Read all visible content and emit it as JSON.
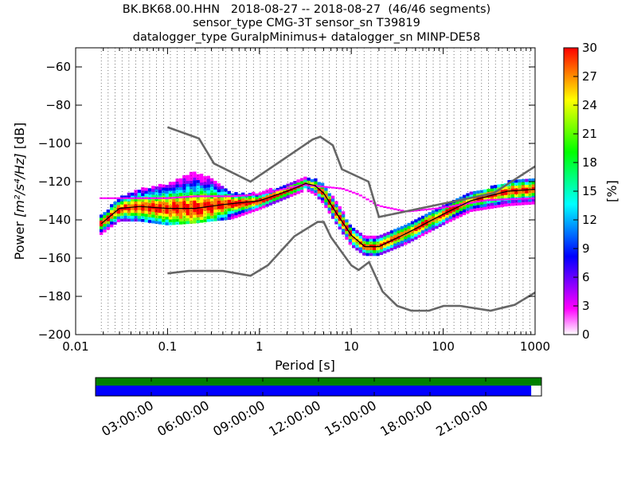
{
  "title": {
    "line1": "BK.BK68.00.HHN   2018-08-27 -- 2018-08-27  (46/46 segments)",
    "line2": "sensor_type CMG-3T sensor_sn T39819",
    "line3": "datalogger_type GuralpMinimus+ datalogger_sn MINP-DE58"
  },
  "chart_data": {
    "type": "heatmap",
    "xlabel": "Period [s]",
    "ylabel_prefix": "Power ",
    "ylabel_math": "[m²/s⁴/Hz]",
    "ylabel_suffix": " [dB]",
    "x_scale": "log",
    "xlim": [
      0.01,
      1000
    ],
    "ylim": [
      -200,
      -50
    ],
    "x_ticks": [
      {
        "value": 0.01,
        "label": "0.01"
      },
      {
        "value": 0.1,
        "label": "0.1"
      },
      {
        "value": 1,
        "label": "1"
      },
      {
        "value": 10,
        "label": "10"
      },
      {
        "value": 100,
        "label": "100"
      },
      {
        "value": 1000,
        "label": "1000"
      }
    ],
    "y_ticks": [
      {
        "value": -60,
        "label": "−60"
      },
      {
        "value": -80,
        "label": "−80"
      },
      {
        "value": -100,
        "label": "−100"
      },
      {
        "value": -120,
        "label": "−120"
      },
      {
        "value": -140,
        "label": "−140"
      },
      {
        "value": -160,
        "label": "−160"
      },
      {
        "value": -180,
        "label": "−180"
      },
      {
        "value": -200,
        "label": "−200"
      }
    ],
    "grid": "dotted vertical at period bins",
    "colorbar": {
      "label": "[%]",
      "range": [
        0,
        30
      ],
      "ticks": [
        {
          "value": 0,
          "label": "0"
        },
        {
          "value": 3,
          "label": "3"
        },
        {
          "value": 6,
          "label": "6"
        },
        {
          "value": 9,
          "label": "9"
        },
        {
          "value": 12,
          "label": "12"
        },
        {
          "value": 15,
          "label": "15"
        },
        {
          "value": 18,
          "label": "18"
        },
        {
          "value": 21,
          "label": "21"
        },
        {
          "value": 24,
          "label": "24"
        },
        {
          "value": 27,
          "label": "27"
        },
        {
          "value": 30,
          "label": "30"
        }
      ],
      "colormap": [
        "#ffffff",
        "#ff00ff",
        "#8000ff",
        "#0000ff",
        "#0080ff",
        "#00ffff",
        "#00ff80",
        "#00ff00",
        "#80ff00",
        "#ffff00",
        "#ff8000",
        "#ff0000"
      ]
    },
    "nhnm": {
      "name": "NHNM",
      "color": "#666666",
      "points": [
        [
          0.1,
          -91.5
        ],
        [
          0.22,
          -97.4
        ],
        [
          0.32,
          -110.5
        ],
        [
          0.8,
          -120
        ],
        [
          3.8,
          -97.9
        ],
        [
          4.6,
          -96.5
        ],
        [
          6.3,
          -101
        ],
        [
          7.9,
          -113.5
        ],
        [
          15.4,
          -120
        ],
        [
          20,
          -138.5
        ],
        [
          354.8,
          -126
        ],
        [
          1000,
          -112
        ]
      ]
    },
    "nlnm": {
      "name": "NLNM",
      "color": "#666666",
      "points": [
        [
          0.1,
          -168
        ],
        [
          0.17,
          -166.7
        ],
        [
          0.4,
          -166.7
        ],
        [
          0.8,
          -169.2
        ],
        [
          1.24,
          -163.7
        ],
        [
          2.4,
          -148.6
        ],
        [
          4.3,
          -141.1
        ],
        [
          5,
          -141.1
        ],
        [
          6,
          -149
        ],
        [
          10,
          -163.8
        ],
        [
          12,
          -166.2
        ],
        [
          15.6,
          -162.1
        ],
        [
          21.9,
          -177.5
        ],
        [
          31.6,
          -185
        ],
        [
          45,
          -187.5
        ],
        [
          70,
          -187.5
        ],
        [
          101,
          -185
        ],
        [
          154,
          -185
        ],
        [
          328,
          -187.5
        ],
        [
          600,
          -184.4
        ],
        [
          1000,
          -178
        ]
      ]
    },
    "mode": {
      "name": "mode",
      "color": "#000000",
      "points": [
        [
          0.019,
          -142
        ],
        [
          0.03,
          -134
        ],
        [
          0.05,
          -133
        ],
        [
          0.1,
          -134
        ],
        [
          0.2,
          -134
        ],
        [
          0.4,
          -132
        ],
        [
          1,
          -130
        ],
        [
          2,
          -125
        ],
        [
          3.2,
          -121
        ],
        [
          4,
          -122
        ],
        [
          5,
          -126
        ],
        [
          7,
          -137
        ],
        [
          10,
          -148
        ],
        [
          14,
          -154
        ],
        [
          20,
          -154
        ],
        [
          40,
          -147
        ],
        [
          100,
          -137
        ],
        [
          200,
          -130
        ],
        [
          500,
          -125
        ],
        [
          1000,
          -124
        ]
      ]
    },
    "spread_band": [
      [
        0.019,
        -139,
        -146
      ],
      [
        0.03,
        -129,
        -139
      ],
      [
        0.05,
        -125,
        -139
      ],
      [
        0.1,
        -122,
        -141
      ],
      [
        0.2,
        -115,
        -140
      ],
      [
        0.3,
        -119,
        -139
      ],
      [
        0.5,
        -127,
        -138
      ],
      [
        1,
        -127,
        -133
      ],
      [
        2,
        -122,
        -127
      ],
      [
        3.2,
        -119,
        -123
      ],
      [
        4,
        -119,
        -125
      ],
      [
        5,
        -122,
        -130
      ],
      [
        7,
        -132,
        -141
      ],
      [
        10,
        -144,
        -152
      ],
      [
        14,
        -150,
        -157
      ],
      [
        20,
        -149,
        -157
      ],
      [
        40,
        -143,
        -151
      ],
      [
        100,
        -133,
        -141
      ],
      [
        200,
        -127,
        -134
      ],
      [
        500,
        -121,
        -131
      ],
      [
        1000,
        -120,
        -130
      ]
    ],
    "outlier_line": [
      [
        0.019,
        -129
      ],
      [
        0.06,
        -129
      ],
      [
        0.1,
        -129
      ],
      [
        0.2,
        -128
      ],
      [
        0.5,
        -128
      ],
      [
        1,
        -127
      ],
      [
        3,
        -122
      ],
      [
        5,
        -123
      ],
      [
        8,
        -124
      ],
      [
        12,
        -127
      ],
      [
        20,
        -133
      ],
      [
        40,
        -136
      ],
      [
        100,
        -134
      ],
      [
        300,
        -130
      ],
      [
        1000,
        -129
      ]
    ],
    "time_axis": {
      "labels": [
        "03:00:00",
        "06:00:00",
        "09:00:00",
        "12:00:00",
        "15:00:00",
        "18:00:00",
        "21:00:00"
      ],
      "hours": [
        3,
        6,
        9,
        12,
        15,
        18,
        21
      ],
      "range_hours": [
        0,
        24
      ],
      "segments_bar_color": "#008000",
      "data_bar_color": "#0000ff",
      "data_fraction": 0.977
    }
  }
}
